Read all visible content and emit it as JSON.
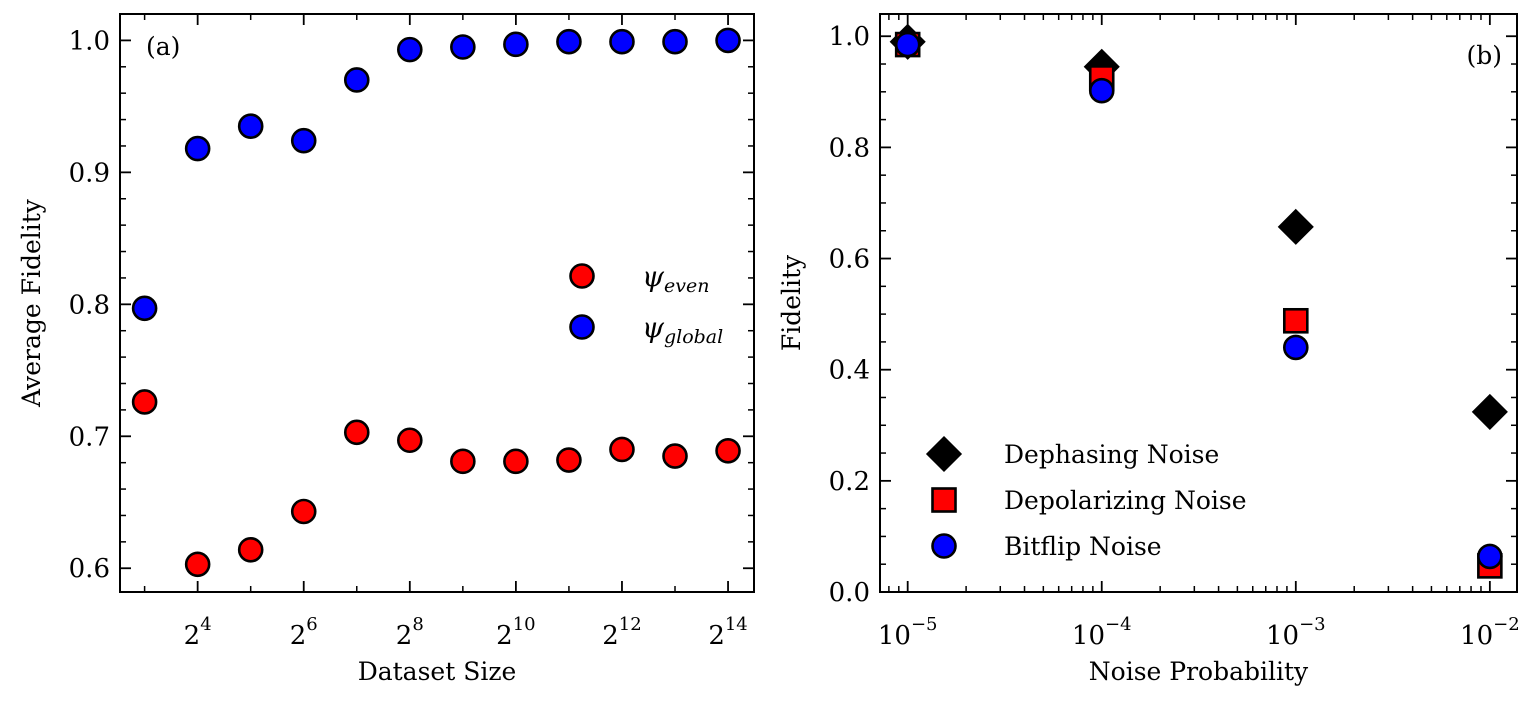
{
  "chart_data": [
    {
      "type": "scatter",
      "panel_label": "(a)",
      "xlabel": "Dataset Size",
      "ylabel": "Average Fidelity",
      "xscale": "log2",
      "x": [
        8,
        16,
        32,
        64,
        128,
        256,
        512,
        1024,
        2048,
        4096,
        8192,
        16384
      ],
      "xlim": [
        5.8,
        23000
      ],
      "ylim": [
        0.582,
        1.02
      ],
      "xticks": [
        {
          "value": 16,
          "base": "2",
          "exp": "4"
        },
        {
          "value": 64,
          "base": "2",
          "exp": "6"
        },
        {
          "value": 256,
          "base": "2",
          "exp": "8"
        },
        {
          "value": 1024,
          "base": "2",
          "exp": "10"
        },
        {
          "value": 4096,
          "base": "2",
          "exp": "12"
        },
        {
          "value": 16384,
          "base": "2",
          "exp": "14"
        }
      ],
      "yticks": [
        {
          "value": 0.6,
          "label": "0.6"
        },
        {
          "value": 0.7,
          "label": "0.7"
        },
        {
          "value": 0.8,
          "label": "0.8"
        },
        {
          "value": 0.9,
          "label": "0.9"
        },
        {
          "value": 1.0,
          "label": "1.0"
        }
      ],
      "legend_position": "center-right",
      "series": [
        {
          "name": "ψ",
          "subscript": "even",
          "marker": "circle",
          "color": "#ff0000",
          "values": [
            0.726,
            0.603,
            0.614,
            0.643,
            0.703,
            0.697,
            0.681,
            0.681,
            0.682,
            0.69,
            0.685,
            0.689
          ]
        },
        {
          "name": "ψ",
          "subscript": "global",
          "marker": "circle",
          "color": "#0000ff",
          "values": [
            0.797,
            0.918,
            0.935,
            0.924,
            0.97,
            0.993,
            0.995,
            0.997,
            0.999,
            0.999,
            0.999,
            1.0
          ]
        }
      ]
    },
    {
      "type": "scatter",
      "panel_label": "(b)",
      "xlabel": "Noise Probability",
      "ylabel": "Fidelity",
      "xscale": "log10",
      "x": [
        1e-05,
        0.0001,
        0.001,
        0.01
      ],
      "xlim": [
        7.2e-06,
        0.0138
      ],
      "ylim": [
        0.0,
        1.04
      ],
      "xticks": [
        {
          "value": 1e-05,
          "base": "10",
          "exp": "−5"
        },
        {
          "value": 0.0001,
          "base": "10",
          "exp": "−4"
        },
        {
          "value": 0.001,
          "base": "10",
          "exp": "−3"
        },
        {
          "value": 0.01,
          "base": "10",
          "exp": "−2"
        }
      ],
      "yticks": [
        {
          "value": 0.0,
          "label": "0.0"
        },
        {
          "value": 0.2,
          "label": "0.2"
        },
        {
          "value": 0.4,
          "label": "0.4"
        },
        {
          "value": 0.6,
          "label": "0.6"
        },
        {
          "value": 0.8,
          "label": "0.8"
        },
        {
          "value": 1.0,
          "label": "1.0"
        }
      ],
      "legend_position": "lower-left",
      "series": [
        {
          "name": "Dephasing Noise",
          "marker": "diamond",
          "color": "#000000",
          "values": [
            0.99,
            0.945,
            0.657,
            0.324
          ]
        },
        {
          "name": "Depolarizing Noise",
          "marker": "square",
          "color": "#ff0000",
          "values": [
            0.985,
            0.925,
            0.488,
            0.047
          ]
        },
        {
          "name": "Bitflip Noise",
          "marker": "circle",
          "color": "#0000ff",
          "values": [
            0.985,
            0.902,
            0.44,
            0.064
          ]
        }
      ]
    }
  ]
}
